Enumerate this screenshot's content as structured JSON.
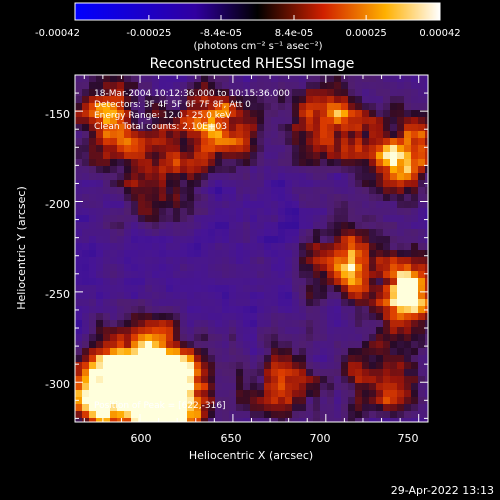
{
  "chart_data": {
    "type": "heatmap",
    "title": "Reconstructed RHESSI Image",
    "xlabel": "Heliocentric X (arcsec)",
    "ylabel": "Heliocentric Y (arcsec)",
    "xlim": [
      565,
      755
    ],
    "ylim": [
      -322,
      -130
    ],
    "x_ticks": [
      "600",
      "650",
      "700",
      "750"
    ],
    "y_ticks": [
      "-150",
      "-200",
      "-250",
      "-300"
    ],
    "colorbar": {
      "range": [
        -0.00042,
        0.00042
      ],
      "tick_labels": [
        "-0.00042",
        "-0.00025",
        "-8.4e-05",
        "8.4e-05",
        "0.00025",
        "0.00042"
      ],
      "label": "(photons cm⁻² s⁻¹ asec⁻²)"
    },
    "annotations": [
      "18-Mar-2004 10:12:36.000 to 10:15:36.000",
      "Detectors: 3F 4F 5F 6F 7F 8F, Att 0",
      "Energy Range: 12.0 - 25.0 keV",
      "Clean     Total counts: 2.10E+03"
    ],
    "peak_label": "Position of Peak = [622,-316]",
    "peak": [
      622,
      -316
    ],
    "bright_regions": [
      {
        "x": 605,
        "y": -290,
        "strength": 0.9
      },
      {
        "x": 580,
        "y": -305,
        "strength": 0.85
      },
      {
        "x": 615,
        "y": -310,
        "strength": 1.0
      },
      {
        "x": 585,
        "y": -155,
        "strength": 0.7
      },
      {
        "x": 640,
        "y": -160,
        "strength": 0.65
      },
      {
        "x": 700,
        "y": -155,
        "strength": 0.6
      },
      {
        "x": 740,
        "y": -175,
        "strength": 0.75
      },
      {
        "x": 745,
        "y": -250,
        "strength": 0.85
      },
      {
        "x": 710,
        "y": -235,
        "strength": 0.55
      },
      {
        "x": 730,
        "y": -300,
        "strength": 0.5
      },
      {
        "x": 675,
        "y": -300,
        "strength": 0.45
      },
      {
        "x": 610,
        "y": -190,
        "strength": 0.45
      }
    ]
  },
  "footer": {
    "timestamp": "29-Apr-2022 13:13"
  }
}
